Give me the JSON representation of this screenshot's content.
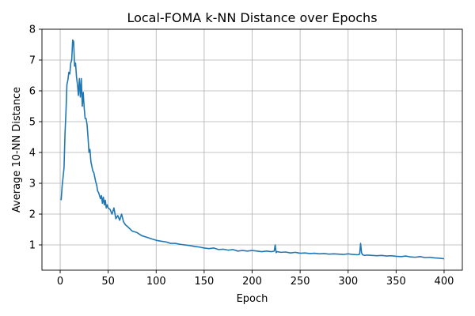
{
  "chart_data": {
    "type": "line",
    "title": "Local-FOMA  k-NN Distance over Epochs",
    "xlabel": "Epoch",
    "ylabel": "Average 10-NN Distance",
    "xlim": [
      -19,
      419
    ],
    "ylim": [
      0.18,
      8.0
    ],
    "xticks": [
      0,
      50,
      100,
      150,
      200,
      250,
      300,
      350,
      400
    ],
    "yticks": [
      1,
      2,
      3,
      4,
      5,
      6,
      7,
      8
    ],
    "grid": true,
    "line_color": "#1f77b4",
    "series": [
      {
        "x": [
          1,
          2,
          3,
          4,
          5,
          6,
          7,
          8,
          9,
          10,
          11,
          12,
          13,
          14,
          15,
          16,
          17,
          18,
          19,
          20,
          21,
          22,
          23,
          24,
          25,
          26,
          27,
          28,
          29,
          30,
          31,
          32,
          33,
          34,
          35,
          36,
          37,
          38,
          39,
          40,
          41,
          42,
          43,
          44,
          45,
          46,
          47,
          48,
          49,
          50,
          52,
          54,
          56,
          58,
          60,
          62,
          64,
          66,
          68,
          70,
          75,
          80,
          85,
          90,
          95,
          100,
          105,
          110,
          115,
          120,
          125,
          130,
          135,
          140,
          145,
          150,
          155,
          160,
          165,
          170,
          175,
          180,
          185,
          190,
          195,
          200,
          205,
          210,
          215,
          220,
          223,
          224,
          225,
          226,
          230,
          235,
          240,
          245,
          250,
          255,
          260,
          265,
          270,
          275,
          280,
          285,
          290,
          295,
          300,
          305,
          310,
          312,
          313,
          314,
          315,
          317,
          320,
          325,
          330,
          335,
          340,
          345,
          350,
          355,
          360,
          365,
          370,
          375,
          380,
          385,
          390,
          395,
          400
        ],
        "y": [
          2.45,
          2.9,
          3.2,
          3.5,
          4.6,
          5.3,
          6.2,
          6.35,
          6.6,
          6.55,
          6.9,
          7.0,
          7.65,
          7.6,
          6.8,
          6.9,
          6.45,
          6.2,
          5.85,
          6.4,
          5.8,
          6.4,
          5.5,
          5.95,
          5.45,
          5.1,
          5.1,
          4.9,
          4.5,
          4.0,
          4.1,
          3.7,
          3.55,
          3.4,
          3.35,
          3.2,
          3.05,
          2.95,
          2.75,
          2.7,
          2.6,
          2.5,
          2.6,
          2.35,
          2.55,
          2.3,
          2.45,
          2.2,
          2.3,
          2.2,
          2.15,
          2.0,
          2.2,
          1.85,
          1.95,
          1.8,
          2.0,
          1.75,
          1.65,
          1.6,
          1.45,
          1.4,
          1.3,
          1.25,
          1.2,
          1.15,
          1.12,
          1.1,
          1.05,
          1.05,
          1.02,
          1.0,
          0.98,
          0.95,
          0.93,
          0.9,
          0.88,
          0.9,
          0.85,
          0.86,
          0.83,
          0.85,
          0.8,
          0.82,
          0.8,
          0.82,
          0.8,
          0.78,
          0.8,
          0.78,
          0.8,
          1.0,
          0.75,
          0.78,
          0.76,
          0.77,
          0.74,
          0.76,
          0.73,
          0.74,
          0.72,
          0.73,
          0.71,
          0.72,
          0.7,
          0.71,
          0.7,
          0.69,
          0.71,
          0.69,
          0.68,
          0.7,
          1.05,
          0.75,
          0.68,
          0.66,
          0.67,
          0.66,
          0.65,
          0.66,
          0.64,
          0.65,
          0.63,
          0.62,
          0.64,
          0.61,
          0.6,
          0.62,
          0.59,
          0.6,
          0.58,
          0.57,
          0.55
        ]
      }
    ]
  }
}
